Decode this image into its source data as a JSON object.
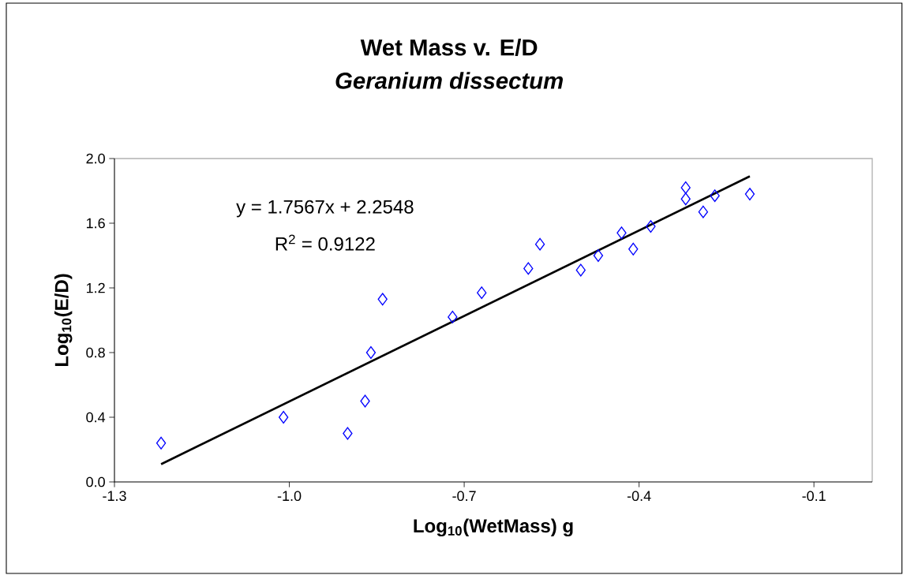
{
  "chart_data": {
    "type": "scatter",
    "title": "Wet Mass v. E/D",
    "subtitle": "Geranium dissectum",
    "xlabel": "Log$_{10}$(WetMass) g",
    "ylabel": "Log$_{10}$(E/D)",
    "xlim": [
      -1.3,
      0.0
    ],
    "ylim": [
      0.0,
      2.0
    ],
    "xticks": [
      {
        "value": -1.3,
        "label": "-1.3"
      },
      {
        "value": -1.0,
        "label": "-1.0"
      },
      {
        "value": -0.7,
        "label": "-0.7"
      },
      {
        "value": -0.4,
        "label": "-0.4"
      },
      {
        "value": -0.1,
        "label": "-0.1"
      }
    ],
    "yticks": [
      {
        "value": 0.0,
        "label": "0.0"
      },
      {
        "value": 0.4,
        "label": "0.4"
      },
      {
        "value": 0.8,
        "label": "0.8"
      },
      {
        "value": 1.2,
        "label": "1.2"
      },
      {
        "value": 1.6,
        "label": "1.6"
      },
      {
        "value": 2.0,
        "label": "2.0"
      }
    ],
    "grid": false,
    "marker": "diamond",
    "annotations": [
      "y = 1.7567x + 2.2548",
      "R$^{2}$ = 0.9122"
    ],
    "series": [
      {
        "color": "#0000ff",
        "x": [
          -1.22,
          -1.01,
          -0.9,
          -0.87,
          -0.86,
          -0.84,
          -0.72,
          -0.67,
          -0.59,
          -0.57,
          -0.5,
          -0.47,
          -0.43,
          -0.41,
          -0.38,
          -0.32,
          -0.32,
          -0.29,
          -0.27,
          -0.21
        ],
        "values": [
          0.24,
          0.4,
          0.3,
          0.5,
          0.8,
          1.13,
          1.02,
          1.17,
          1.32,
          1.47,
          1.31,
          1.4,
          1.54,
          1.44,
          1.58,
          1.75,
          1.82,
          1.67,
          1.77,
          1.78
        ]
      },
      {
        "type": "line",
        "color": "#000000",
        "marker": "none",
        "x": [
          -1.22,
          -0.21
        ],
        "values": [
          0.11,
          1.89
        ]
      }
    ]
  }
}
